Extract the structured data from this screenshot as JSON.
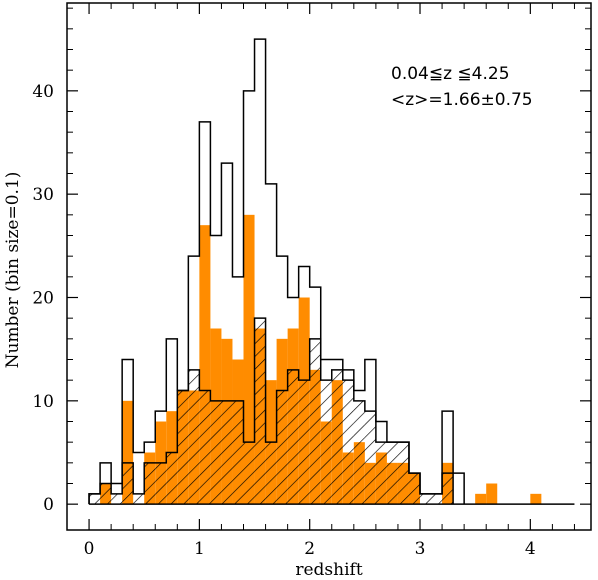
{
  "chart_data": {
    "type": "bar",
    "subtype": "step-histogram",
    "xlabel": "redshift",
    "ylabel": "Number (bin size=0.1)",
    "xlim": [
      -0.2,
      4.55
    ],
    "ylim": [
      -2.5,
      48.5
    ],
    "xticks": [
      0,
      1,
      2,
      3,
      4
    ],
    "yticks": [
      0,
      10,
      20,
      30,
      40
    ],
    "annotations": [
      "0.04≦z ≦4.25",
      "<z>=1.66±0.75"
    ],
    "bin_width": 0.1,
    "bin_starts": [
      0.0,
      0.1,
      0.2,
      0.3,
      0.4,
      0.5,
      0.6,
      0.7,
      0.8,
      0.9,
      1.0,
      1.1,
      1.2,
      1.3,
      1.4,
      1.5,
      1.6,
      1.7,
      1.8,
      1.9,
      2.0,
      2.1,
      2.2,
      2.3,
      2.4,
      2.5,
      2.6,
      2.7,
      2.8,
      2.9,
      3.0,
      3.1,
      3.2,
      3.3,
      3.4,
      3.5,
      3.6,
      3.7,
      3.8,
      3.9,
      4.0,
      4.1,
      4.2,
      4.3,
      4.4
    ],
    "series": [
      {
        "style": "outline",
        "color": "#000000",
        "values": [
          1,
          4,
          2,
          14,
          5,
          6,
          9,
          16,
          11,
          24,
          37,
          26,
          33,
          22,
          40,
          45,
          31,
          24,
          20,
          23,
          21,
          14,
          14,
          13,
          11,
          14,
          8,
          6,
          6,
          3,
          1,
          1,
          9,
          3,
          0,
          0,
          0,
          0,
          0,
          0,
          0,
          0,
          0,
          0,
          0
        ]
      },
      {
        "style": "filled",
        "color": "#ff8c00",
        "values": [
          0,
          2,
          0,
          10,
          0,
          5,
          8,
          9,
          11,
          11,
          27,
          17,
          16,
          14,
          28,
          17,
          12,
          16,
          17,
          20,
          13,
          8,
          12,
          5,
          6,
          4,
          5,
          4,
          4,
          3,
          0,
          0,
          4,
          0,
          0,
          1,
          2,
          0,
          0,
          0,
          1,
          0,
          0,
          0,
          0
        ]
      },
      {
        "style": "hatched",
        "color": "#000000",
        "values": [
          1,
          2,
          1,
          4,
          1,
          4,
          4,
          5,
          11,
          13,
          11,
          10,
          10,
          10,
          6,
          18,
          6,
          11,
          13,
          12,
          16,
          12,
          13,
          12,
          10,
          9,
          6,
          6,
          6,
          3,
          1,
          1,
          3,
          0,
          0,
          0,
          0,
          0,
          0,
          0,
          0,
          0,
          0,
          0,
          0
        ]
      }
    ]
  }
}
